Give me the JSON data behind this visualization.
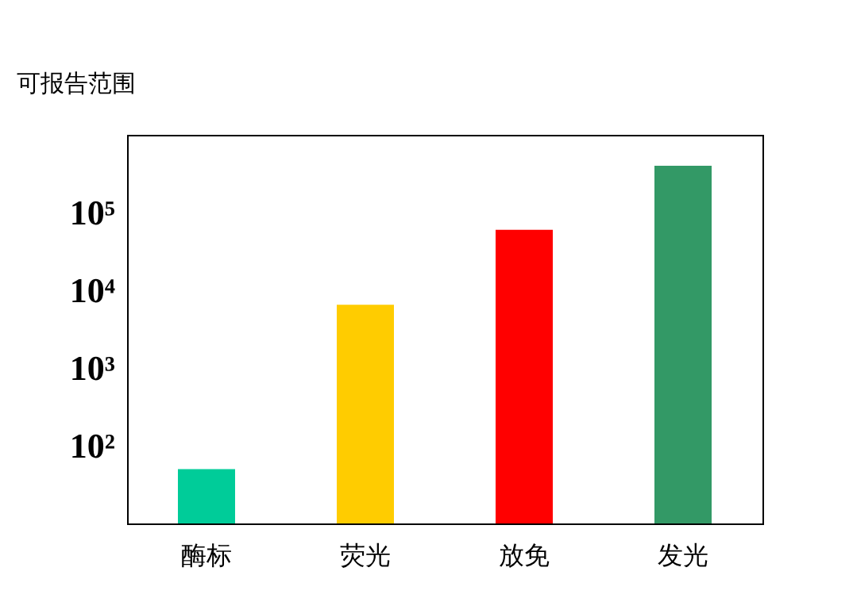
{
  "chart_data": {
    "type": "bar",
    "ylabel": "可报告范围",
    "categories": [
      "酶标",
      "荧光",
      "放免",
      "发光"
    ],
    "values": [
      50,
      6500,
      60000,
      400000
    ],
    "colors": [
      "#00cc99",
      "#ffcc00",
      "#ff0000",
      "#339966"
    ],
    "log": true,
    "ylim": [
      10,
      1000000
    ],
    "yticks": [
      {
        "value": 100,
        "label": "10²"
      },
      {
        "value": 1000,
        "label": "10³"
      },
      {
        "value": 10000,
        "label": "10⁴"
      },
      {
        "value": 100000,
        "label": "10⁵"
      }
    ],
    "grid": false
  }
}
